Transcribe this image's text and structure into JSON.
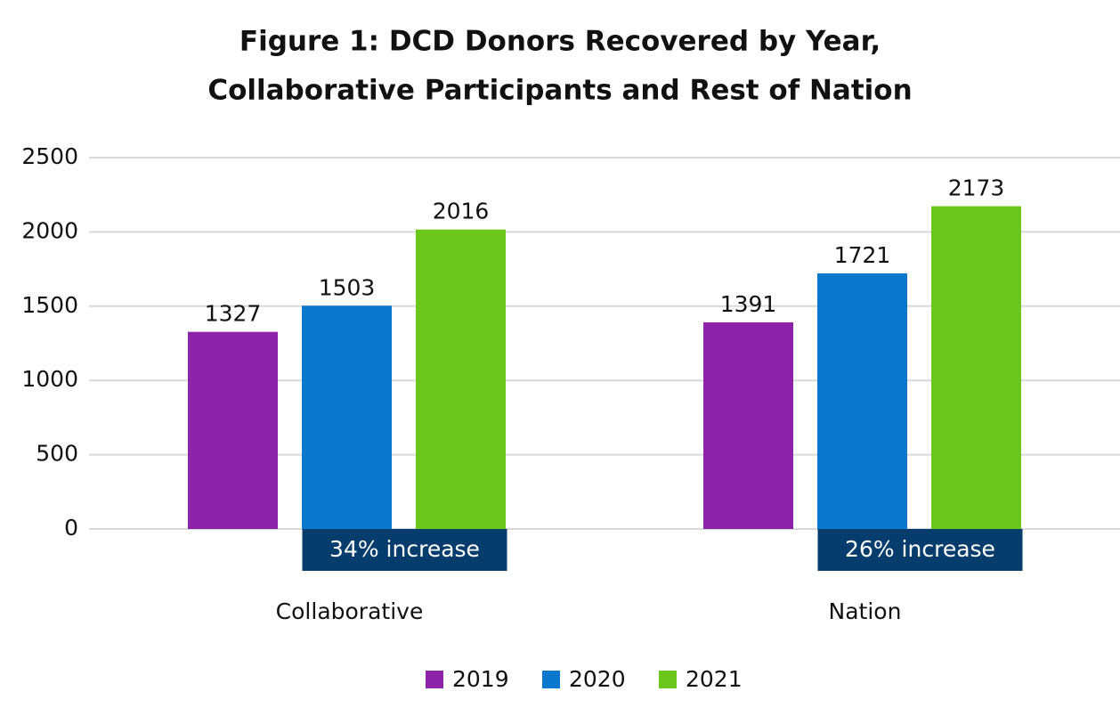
{
  "chart_data": {
    "type": "bar",
    "title": [
      "Figure 1: DCD Donors Recovered by Year,",
      "Collaborative Participants and Rest of Nation"
    ],
    "categories": [
      "Collaborative",
      "Nation"
    ],
    "series": [
      {
        "name": "2019",
        "color": "#8c23a8",
        "values": [
          1327,
          1391
        ]
      },
      {
        "name": "2020",
        "color": "#0a78cc",
        "values": [
          1503,
          1721
        ]
      },
      {
        "name": "2021",
        "color": "#6cc71d",
        "values": [
          2016,
          2173
        ]
      }
    ],
    "annotations": [
      "34% increase",
      "26% increase"
    ],
    "annotation_color": "#073d6d",
    "ylim": [
      0,
      2500
    ],
    "yticks": [
      0,
      500,
      1000,
      1500,
      2000,
      2500
    ],
    "grid": true
  }
}
